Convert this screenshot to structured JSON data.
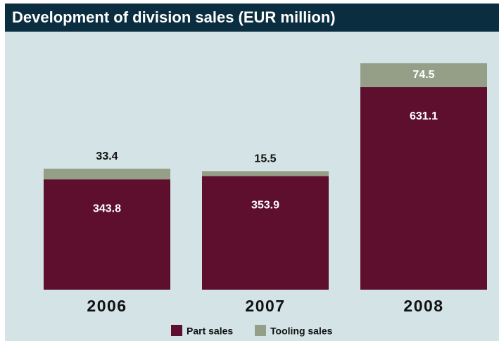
{
  "chart_data": {
    "type": "stacked-bar",
    "title": "Development of division sales (EUR million)",
    "categories": [
      "2006",
      "2007",
      "2008"
    ],
    "series": [
      {
        "name": "Part sales",
        "color": "#5e0f2e",
        "values": [
          343.8,
          353.9,
          631.1
        ]
      },
      {
        "name": "Tooling sales",
        "color": "#959e86",
        "values": [
          33.4,
          15.5,
          74.5
        ]
      }
    ],
    "legend": "bottom"
  }
}
